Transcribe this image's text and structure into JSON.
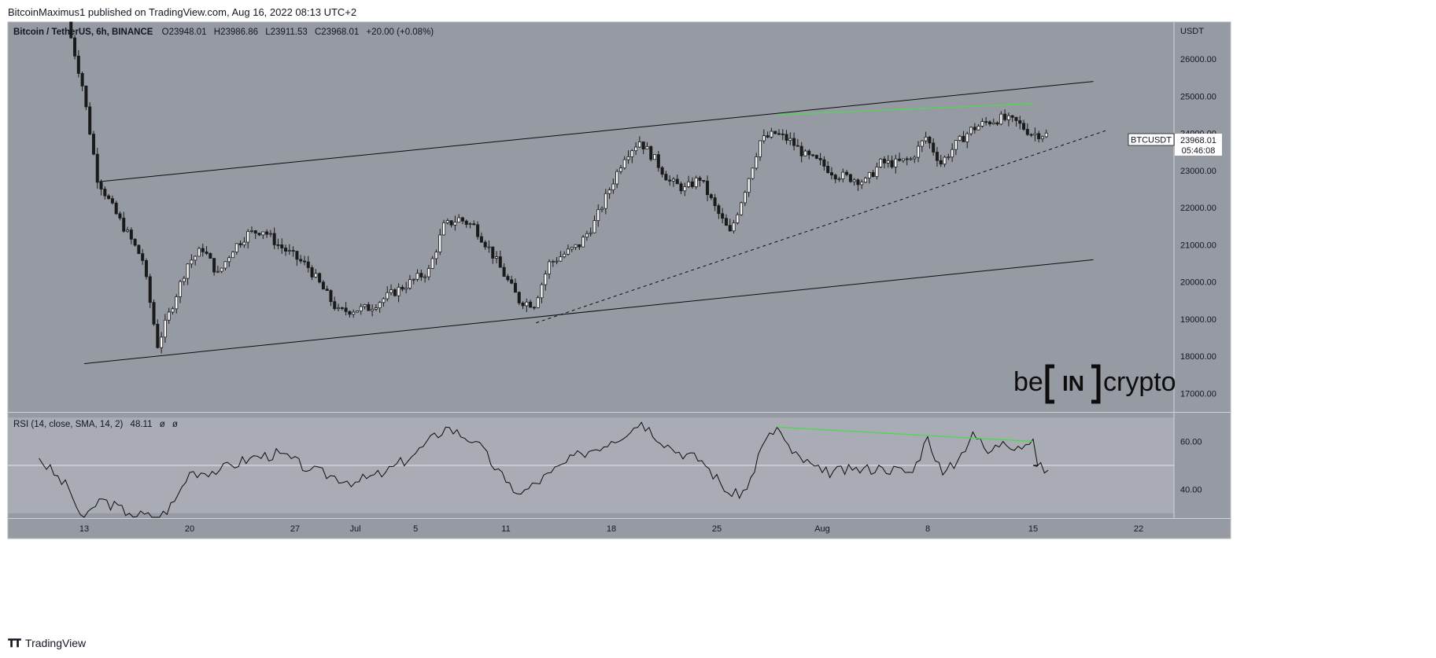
{
  "header": {
    "publisher": "BitcoinMaximus1 published on TradingView.com, Aug 16, 2022 08:13 UTC+2"
  },
  "footer": {
    "brand": "TradingView"
  },
  "watermark": {
    "left": "be",
    "middle": "IN",
    "right": "crypto"
  },
  "colors": {
    "background": "#969aa3",
    "rsi_band": "#a9acb4",
    "green_line": "#4fd84f",
    "candle": "#1a1a1a"
  },
  "chart_data": [
    {
      "type": "candlestick",
      "title": "Bitcoin / TetherUS, 6h, BINANCE",
      "ohlc": {
        "open_label": "O",
        "open": "23948.01",
        "high_label": "H",
        "high": "23986.86",
        "low_label": "L",
        "low": "23911.53",
        "close_label": "C",
        "close": "23968.01",
        "change": "+20.00 (+0.08%)"
      },
      "currency": "USDT",
      "ylim": [
        16500,
        27000
      ],
      "y_ticks": [
        "26000.00",
        "25000.00",
        "24000.00",
        "23000.00",
        "22000.00",
        "21000.00",
        "20000.00",
        "19000.00",
        "18000.00",
        "17000.00"
      ],
      "x_ticks": [
        "13",
        "20",
        "27",
        "Jul",
        "5",
        "11",
        "18",
        "25",
        "Aug",
        "8",
        "15",
        "22"
      ],
      "symbol_label": "BTCUSDT",
      "last_price": "23968.01",
      "countdown": "05:46:08",
      "price_path": [
        [
          "Jun 12",
          27000
        ],
        [
          "Jun 13",
          25300
        ],
        [
          "Jun 14",
          22800
        ],
        [
          "Jun 15",
          22000
        ],
        [
          "Jun 16",
          21300
        ],
        [
          "Jun 17",
          20600
        ],
        [
          "Jun 18",
          18300
        ],
        [
          "Jun 19",
          19400
        ],
        [
          "Jun 20",
          20500
        ],
        [
          "Jun 21",
          20900
        ],
        [
          "Jun 22",
          20200
        ],
        [
          "Jun 23",
          20900
        ],
        [
          "Jun 24",
          21300
        ],
        [
          "Jun 25",
          21400
        ],
        [
          "Jun 26",
          21000
        ],
        [
          "Jun 28",
          20400
        ],
        [
          "Jun 30",
          19200
        ],
        [
          "Jul 2",
          19300
        ],
        [
          "Jul 4",
          19800
        ],
        [
          "Jul 6",
          20300
        ],
        [
          "Jul 7",
          21500
        ],
        [
          "Jul 8",
          21700
        ],
        [
          "Jul 9",
          21500
        ],
        [
          "Jul 10",
          20900
        ],
        [
          "Jul 12",
          19500
        ],
        [
          "Jul 13",
          19400
        ],
        [
          "Jul 14",
          20500
        ],
        [
          "Jul 16",
          21000
        ],
        [
          "Jul 17",
          21600
        ],
        [
          "Jul 18",
          22500
        ],
        [
          "Jul 19",
          23400
        ],
        [
          "Jul 20",
          23800
        ],
        [
          "Jul 21",
          23300
        ],
        [
          "Jul 22",
          22700
        ],
        [
          "Jul 23",
          22500
        ],
        [
          "Jul 24",
          22800
        ],
        [
          "Jul 25",
          22000
        ],
        [
          "Jul 26",
          21300
        ],
        [
          "Jul 27",
          22500
        ],
        [
          "Jul 28",
          23800
        ],
        [
          "Jul 29",
          24000
        ],
        [
          "Jul 30",
          23800
        ],
        [
          "Jul 31",
          23400
        ],
        [
          "Aug 1",
          23200
        ],
        [
          "Aug 2",
          22900
        ],
        [
          "Aug 3",
          22800
        ],
        [
          "Aug 4",
          22700
        ],
        [
          "Aug 5",
          23200
        ],
        [
          "Aug 6",
          23200
        ],
        [
          "Aug 7",
          23300
        ],
        [
          "Aug 8",
          23900
        ],
        [
          "Aug 9",
          23200
        ],
        [
          "Aug 10",
          23700
        ],
        [
          "Aug 11",
          24100
        ],
        [
          "Aug 12",
          24300
        ],
        [
          "Aug 13",
          24400
        ],
        [
          "Aug 14",
          24300
        ],
        [
          "Aug 15",
          24000
        ],
        [
          "Aug 16",
          23968
        ]
      ],
      "trendlines": [
        {
          "from": [
            "Jun 14",
            22700
          ],
          "to": [
            "Aug 19",
            25400
          ],
          "style": "solid"
        },
        {
          "from": [
            "Jun 13",
            17800
          ],
          "to": [
            "Aug 19",
            20600
          ],
          "style": "solid"
        },
        {
          "from": [
            "Jul 13",
            18900
          ],
          "to": [
            "Aug 20",
            24100
          ],
          "style": "dashed"
        },
        {
          "from": [
            "Jul 29",
            24500
          ],
          "to": [
            "Aug 15",
            24800
          ],
          "style": "solid",
          "color": "green"
        }
      ]
    },
    {
      "type": "line",
      "title": "RSI (14, close, SMA, 14, 2)",
      "value": "48.11",
      "extra_values": [
        "ø",
        "ø"
      ],
      "ylim": [
        28,
        72
      ],
      "y_ticks": [
        "60.00",
        "40.00"
      ],
      "band": [
        30,
        70
      ],
      "midline": 50,
      "rsi_path": [
        [
          "Jun 10",
          53
        ],
        [
          "Jun 12",
          40
        ],
        [
          "Jun 13",
          26
        ],
        [
          "Jun 14",
          36
        ],
        [
          "Jun 16",
          30
        ],
        [
          "Jun 18",
          28
        ],
        [
          "Jun 19",
          35
        ],
        [
          "Jun 20",
          47
        ],
        [
          "Jun 22",
          48
        ],
        [
          "Jun 24",
          53
        ],
        [
          "Jun 26",
          55
        ],
        [
          "Jun 28",
          48
        ],
        [
          "Jul 1",
          43
        ],
        [
          "Jul 3",
          47
        ],
        [
          "Jul 5",
          55
        ],
        [
          "Jul 7",
          66
        ],
        [
          "Jul 9",
          60
        ],
        [
          "Jul 11",
          43
        ],
        [
          "Jul 12",
          38
        ],
        [
          "Jul 14",
          47
        ],
        [
          "Jul 16",
          55
        ],
        [
          "Jul 18",
          60
        ],
        [
          "Jul 20",
          68
        ],
        [
          "Jul 22",
          57
        ],
        [
          "Jul 24",
          52
        ],
        [
          "Jul 26",
          37
        ],
        [
          "Jul 27",
          40
        ],
        [
          "Jul 28",
          58
        ],
        [
          "Jul 29",
          66
        ],
        [
          "Jul 30",
          55
        ],
        [
          "Aug 1",
          47
        ],
        [
          "Aug 3",
          48
        ],
        [
          "Aug 5",
          49
        ],
        [
          "Aug 7",
          47
        ],
        [
          "Aug 8",
          62
        ],
        [
          "Aug 9",
          46
        ],
        [
          "Aug 10",
          52
        ],
        [
          "Aug 11",
          64
        ],
        [
          "Aug 12",
          55
        ],
        [
          "Aug 13",
          60
        ],
        [
          "Aug 14",
          58
        ],
        [
          "Aug 15",
          61
        ],
        [
          "Aug 15",
          50
        ],
        [
          "Aug 16",
          48
        ]
      ],
      "trendlines": [
        {
          "from": [
            "Jul 29",
            66
          ],
          "to": [
            "Aug 15",
            60
          ],
          "color": "green"
        }
      ]
    }
  ]
}
